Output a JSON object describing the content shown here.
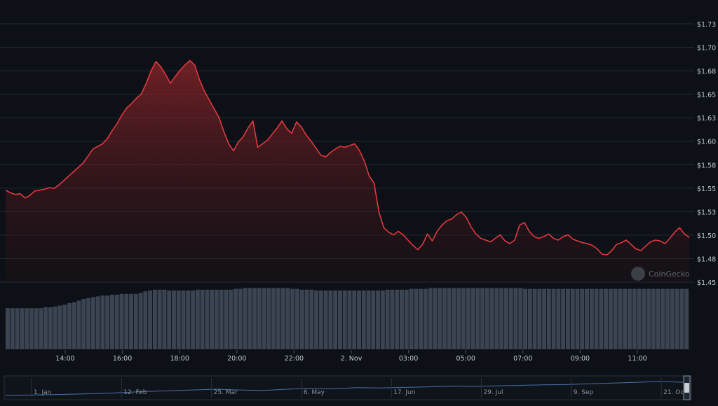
{
  "chart_data": {
    "type": "area",
    "title": "",
    "xlabel": "",
    "ylabel": "",
    "currency_prefix": "$",
    "y_ticks": [
      "$1.73",
      "$1.70",
      "$1.68",
      "$1.65",
      "$1.63",
      "$1.60",
      "$1.58",
      "$1.55",
      "$1.53",
      "$1.50",
      "$1.48",
      "$1.45"
    ],
    "ylim": [
      1.44,
      1.735
    ],
    "x_ticks": [
      "14:00",
      "16:00",
      "18:00",
      "20:00",
      "22:00",
      "2. Nov",
      "03:00",
      "05:00",
      "07:00",
      "09:00",
      "11:00"
    ],
    "grid": true,
    "series": [
      {
        "values": [
          1.545,
          1.542,
          1.54,
          1.541,
          1.536,
          1.539,
          1.544,
          1.545,
          1.546,
          1.548,
          1.547,
          1.551,
          1.556,
          1.561,
          1.566,
          1.571,
          1.576,
          1.584,
          1.592,
          1.595,
          1.598,
          1.604,
          1.613,
          1.621,
          1.631,
          1.639,
          1.644,
          1.65,
          1.655,
          1.667,
          1.681,
          1.692,
          1.686,
          1.677,
          1.667,
          1.675,
          1.682,
          1.688,
          1.693,
          1.688,
          1.671,
          1.658,
          1.648,
          1.638,
          1.628,
          1.612,
          1.598,
          1.59,
          1.6,
          1.606,
          1.616,
          1.624,
          1.594,
          1.598,
          1.602,
          1.609,
          1.616,
          1.624,
          1.615,
          1.61,
          1.623,
          1.617,
          1.608,
          1.601,
          1.593,
          1.585,
          1.583,
          1.588,
          1.592,
          1.595,
          1.594,
          1.596,
          1.598,
          1.59,
          1.578,
          1.561,
          1.553,
          1.52,
          1.502,
          1.497,
          1.494,
          1.498,
          1.494,
          1.488,
          1.482,
          1.477,
          1.483,
          1.495,
          1.487,
          1.498,
          1.505,
          1.51,
          1.512,
          1.517,
          1.52,
          1.514,
          1.503,
          1.495,
          1.49,
          1.488,
          1.486,
          1.49,
          1.494,
          1.487,
          1.484,
          1.488,
          1.505,
          1.508,
          1.498,
          1.492,
          1.49,
          1.492,
          1.495,
          1.49,
          1.488,
          1.492,
          1.494,
          1.489,
          1.487,
          1.485,
          1.484,
          1.482,
          1.478,
          1.472,
          1.471,
          1.476,
          1.483,
          1.485,
          1.488,
          1.483,
          1.478,
          1.476,
          1.481,
          1.486,
          1.488,
          1.487,
          1.484,
          1.49,
          1.497,
          1.502,
          1.495,
          1.491
        ]
      }
    ],
    "volume": [
      0.49,
      0.49,
      0.49,
      0.49,
      0.49,
      0.49,
      0.49,
      0.49,
      0.5,
      0.5,
      0.51,
      0.52,
      0.53,
      0.55,
      0.56,
      0.58,
      0.6,
      0.61,
      0.62,
      0.63,
      0.64,
      0.64,
      0.65,
      0.65,
      0.66,
      0.66,
      0.66,
      0.66,
      0.67,
      0.69,
      0.7,
      0.71,
      0.71,
      0.71,
      0.7,
      0.7,
      0.7,
      0.7,
      0.7,
      0.7,
      0.71,
      0.71,
      0.71,
      0.71,
      0.71,
      0.71,
      0.71,
      0.71,
      0.72,
      0.72,
      0.73,
      0.73,
      0.73,
      0.73,
      0.73,
      0.73,
      0.73,
      0.73,
      0.73,
      0.73,
      0.72,
      0.72,
      0.71,
      0.71,
      0.71,
      0.7,
      0.7,
      0.7,
      0.7,
      0.7,
      0.7,
      0.7,
      0.7,
      0.7,
      0.7,
      0.7,
      0.7,
      0.7,
      0.7,
      0.7,
      0.71,
      0.71,
      0.71,
      0.71,
      0.71,
      0.72,
      0.72,
      0.72,
      0.72,
      0.73,
      0.73,
      0.73,
      0.73,
      0.73,
      0.73,
      0.73,
      0.73,
      0.73,
      0.73,
      0.73,
      0.73,
      0.73,
      0.73,
      0.73,
      0.73,
      0.73,
      0.73,
      0.73,
      0.73,
      0.72,
      0.72,
      0.72,
      0.72,
      0.72,
      0.72,
      0.72,
      0.72,
      0.72,
      0.72,
      0.72,
      0.72,
      0.72,
      0.72,
      0.72,
      0.72,
      0.72,
      0.72,
      0.72,
      0.72,
      0.72,
      0.72,
      0.72,
      0.72,
      0.72,
      0.72,
      0.72,
      0.72,
      0.72,
      0.72,
      0.72,
      0.72,
      0.72,
      0.72,
      0.72
    ],
    "navigator": {
      "labels": [
        "1. Jan",
        "12. Feb",
        "25. Mar",
        "6. May",
        "17. Jun",
        "29. Jul",
        "9. Sep",
        "21. Oct"
      ],
      "values": [
        0.1,
        0.12,
        0.15,
        0.18,
        0.22,
        0.28,
        0.35,
        0.4,
        0.45,
        0.5,
        0.45,
        0.42,
        0.5,
        0.55,
        0.52,
        0.6,
        0.58,
        0.62,
        0.65,
        0.7,
        0.68,
        0.72,
        0.75,
        0.78,
        0.8,
        0.85,
        0.9,
        0.95,
        1.0,
        0.95
      ]
    },
    "colors": {
      "line": "#e0393e",
      "fill": "#7a1c20",
      "volume": "#3a4452",
      "grid": "#232a33",
      "tick": "#c3c8cf",
      "nav_line": "#4a6fa5"
    },
    "watermark": "CoinGecko"
  }
}
